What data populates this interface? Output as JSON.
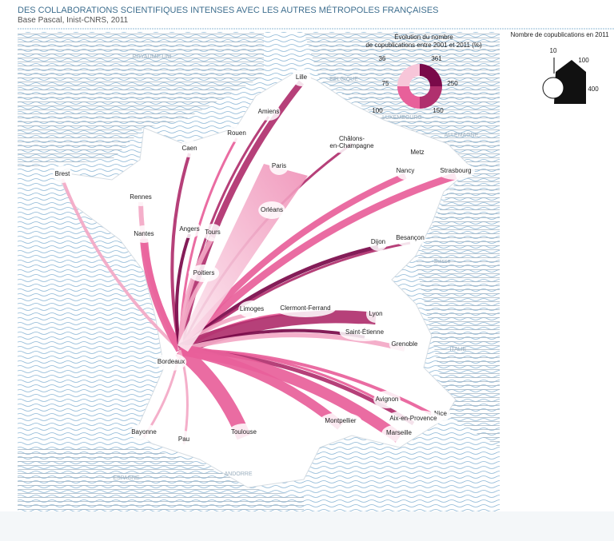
{
  "header": {
    "title": "DES COLLABORATIONS SCIENTIFIQUES INTENSES AVEC LES AUTRES MÉTROPOLES FRANÇAISES",
    "subtitle": "Base Pascal, Inist-CNRS, 2011"
  },
  "legend_change": {
    "title": [
      "Évolution du nombre",
      "de copublications entre 2001 et 2011 (%)"
    ],
    "labels": [
      "36",
      "361",
      "75",
      "250",
      "100",
      "150"
    ]
  },
  "legend_size": {
    "title": "Nombre de copublications en 2011",
    "labels": [
      "10",
      "100",
      "400"
    ]
  },
  "countries": [
    "ROYAUME-UNI",
    "BELGIQUE",
    "LUXEMBOURG",
    "ALLEMAGNE",
    "Suisse",
    "ITALIE",
    "ESPAGNE",
    "ANDORRE"
  ],
  "cities": [
    {
      "label": [
        "Lille"
      ]
    },
    {
      "label": [
        "Amiens"
      ]
    },
    {
      "label": [
        "Rouen"
      ]
    },
    {
      "label": [
        "Caen"
      ]
    },
    {
      "label": [
        "Brest"
      ]
    },
    {
      "label": [
        "Paris"
      ]
    },
    {
      "label": [
        "Châlons-",
        "en-Champagne"
      ]
    },
    {
      "label": [
        "Metz"
      ]
    },
    {
      "label": [
        "Nancy"
      ]
    },
    {
      "label": [
        "Strasbourg"
      ]
    },
    {
      "label": [
        "Rennes"
      ]
    },
    {
      "label": [
        "Orléans"
      ]
    },
    {
      "label": [
        "Nantes"
      ]
    },
    {
      "label": [
        "Angers"
      ]
    },
    {
      "label": [
        "Tours"
      ]
    },
    {
      "label": [
        "Dijon"
      ]
    },
    {
      "label": [
        "Besançon"
      ]
    },
    {
      "label": [
        "Poitiers"
      ]
    },
    {
      "label": [
        "Limoges"
      ]
    },
    {
      "label": [
        "Clermont-Ferrand"
      ]
    },
    {
      "label": [
        "Lyon"
      ]
    },
    {
      "label": [
        "Saint-Étienne"
      ]
    },
    {
      "label": [
        "Grenoble"
      ]
    },
    {
      "label": [
        "Bordeaux"
      ]
    },
    {
      "label": [
        "Avignon"
      ]
    },
    {
      "label": [
        "Nice"
      ]
    },
    {
      "label": [
        "Aix-en-Provence"
      ]
    },
    {
      "label": [
        "Montpellier"
      ]
    },
    {
      "label": [
        "Marseille"
      ]
    },
    {
      "label": [
        "Toulouse"
      ]
    },
    {
      "label": [
        "Bayonne"
      ]
    },
    {
      "label": [
        "Pau"
      ]
    }
  ]
}
